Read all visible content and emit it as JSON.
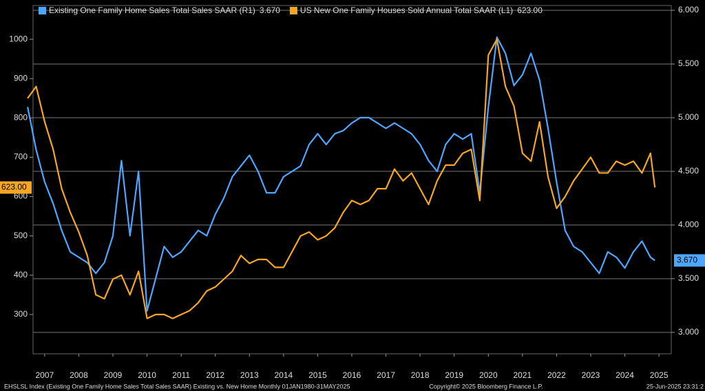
{
  "chart_data": {
    "type": "line",
    "legend_position": "top-left",
    "x": [
      2007.0,
      2007.25,
      2007.5,
      2007.75,
      2008.0,
      2008.25,
      2008.5,
      2008.75,
      2009.0,
      2009.25,
      2009.5,
      2009.75,
      2010.0,
      2010.25,
      2010.5,
      2010.75,
      2011.0,
      2011.25,
      2011.5,
      2011.75,
      2012.0,
      2012.25,
      2012.5,
      2012.75,
      2013.0,
      2013.25,
      2013.5,
      2013.75,
      2014.0,
      2014.25,
      2014.5,
      2014.75,
      2015.0,
      2015.25,
      2015.5,
      2015.75,
      2016.0,
      2016.25,
      2016.5,
      2016.75,
      2017.0,
      2017.25,
      2017.5,
      2017.75,
      2018.0,
      2018.25,
      2018.5,
      2018.75,
      2019.0,
      2019.25,
      2019.5,
      2019.75,
      2020.0,
      2020.25,
      2020.5,
      2020.75,
      2021.0,
      2021.25,
      2021.5,
      2021.75,
      2022.0,
      2022.25,
      2022.5,
      2022.75,
      2023.0,
      2023.25,
      2023.5,
      2023.75,
      2024.0,
      2024.25,
      2024.5,
      2024.75,
      2025.0,
      2025.25,
      2025.38
    ],
    "xlim": [
      2007.16,
      2025.86
    ],
    "xticks": [
      {
        "value": 2007.5,
        "label": "2007"
      },
      {
        "value": 2008.5,
        "label": "2008"
      },
      {
        "value": 2009.5,
        "label": "2009"
      },
      {
        "value": 2010.5,
        "label": "2010"
      },
      {
        "value": 2011.5,
        "label": "2011"
      },
      {
        "value": 2012.5,
        "label": "2012"
      },
      {
        "value": 2013.5,
        "label": "2013"
      },
      {
        "value": 2014.5,
        "label": "2014"
      },
      {
        "value": 2015.5,
        "label": "2015"
      },
      {
        "value": 2016.5,
        "label": "2016"
      },
      {
        "value": 2017.5,
        "label": "2017"
      },
      {
        "value": 2018.5,
        "label": "2018"
      },
      {
        "value": 2019.5,
        "label": "2019"
      },
      {
        "value": 2020.5,
        "label": "2020"
      },
      {
        "value": 2021.5,
        "label": "2021"
      },
      {
        "value": 2022.5,
        "label": "2022"
      },
      {
        "value": 2023.5,
        "label": "2023"
      },
      {
        "value": 2024.5,
        "label": "2024"
      },
      {
        "value": 2025.5,
        "label": "2025"
      }
    ],
    "ylim": [
      200,
      1086
    ],
    "yticks": [
      300,
      400,
      500,
      600,
      700,
      800,
      900,
      1000
    ],
    "y2lim": [
      2.8,
      6.045
    ],
    "y2ticks": [
      {
        "value": 3,
        "label": "3.000"
      },
      {
        "value": 3.5,
        "label": "3.500"
      },
      {
        "value": 4,
        "label": "4.000"
      },
      {
        "value": 4.5,
        "label": "4.500"
      },
      {
        "value": 5,
        "label": "5.000"
      },
      {
        "value": 5.5,
        "label": "5.500"
      },
      {
        "value": 6,
        "label": "6.000"
      }
    ],
    "grid": true,
    "series": [
      {
        "name": "Existing One Family Home Sales Total Sales SAAR  (R1)",
        "last_value_label": "3.670",
        "axis": "y2",
        "color": "#4da6ff",
        "values": [
          5.1,
          4.7,
          4.4,
          4.2,
          3.95,
          3.75,
          3.7,
          3.65,
          3.55,
          3.65,
          3.9,
          4.6,
          3.9,
          4.5,
          3.2,
          3.5,
          3.8,
          3.7,
          3.75,
          3.85,
          3.95,
          3.9,
          4.1,
          4.25,
          4.45,
          4.55,
          4.65,
          4.5,
          4.3,
          4.3,
          4.45,
          4.5,
          4.55,
          4.75,
          4.85,
          4.75,
          4.85,
          4.88,
          4.95,
          5.0,
          5.0,
          4.95,
          4.9,
          4.95,
          4.9,
          4.85,
          4.75,
          4.6,
          4.5,
          4.75,
          4.85,
          4.8,
          4.85,
          4.3,
          5.1,
          5.75,
          5.6,
          5.3,
          5.4,
          5.6,
          5.35,
          4.9,
          4.4,
          3.95,
          3.8,
          3.75,
          3.65,
          3.55,
          3.75,
          3.7,
          3.6,
          3.75,
          3.85,
          3.7,
          3.67
        ]
      },
      {
        "name": "US New One Family Houses Sold Annual Total SAAR (L1)",
        "last_value_label": "623.00",
        "axis": "y",
        "color": "#f5a623",
        "values": [
          850,
          880,
          790,
          720,
          620,
          560,
          510,
          450,
          350,
          340,
          390,
          400,
          350,
          410,
          290,
          300,
          300,
          290,
          300,
          310,
          330,
          360,
          370,
          390,
          410,
          450,
          430,
          440,
          440,
          420,
          420,
          460,
          500,
          510,
          490,
          500,
          520,
          560,
          590,
          580,
          590,
          620,
          620,
          670,
          640,
          660,
          620,
          580,
          640,
          680,
          680,
          710,
          720,
          590,
          960,
          1000,
          880,
          830,
          710,
          690,
          790,
          650,
          570,
          600,
          640,
          670,
          700,
          660,
          660,
          690,
          680,
          690,
          660,
          710,
          623
        ]
      }
    ],
    "footer_left": "EHSLSL Index (Existing One Family Home Sales Total Sales SAAR) Existing vs. New Home  Monthly 01JAN1980-31MAY2025",
    "footer_center": "Copyright© 2025 Bloomberg Finance L.P.",
    "footer_right": "25-Jun-2025 23:31:2"
  }
}
